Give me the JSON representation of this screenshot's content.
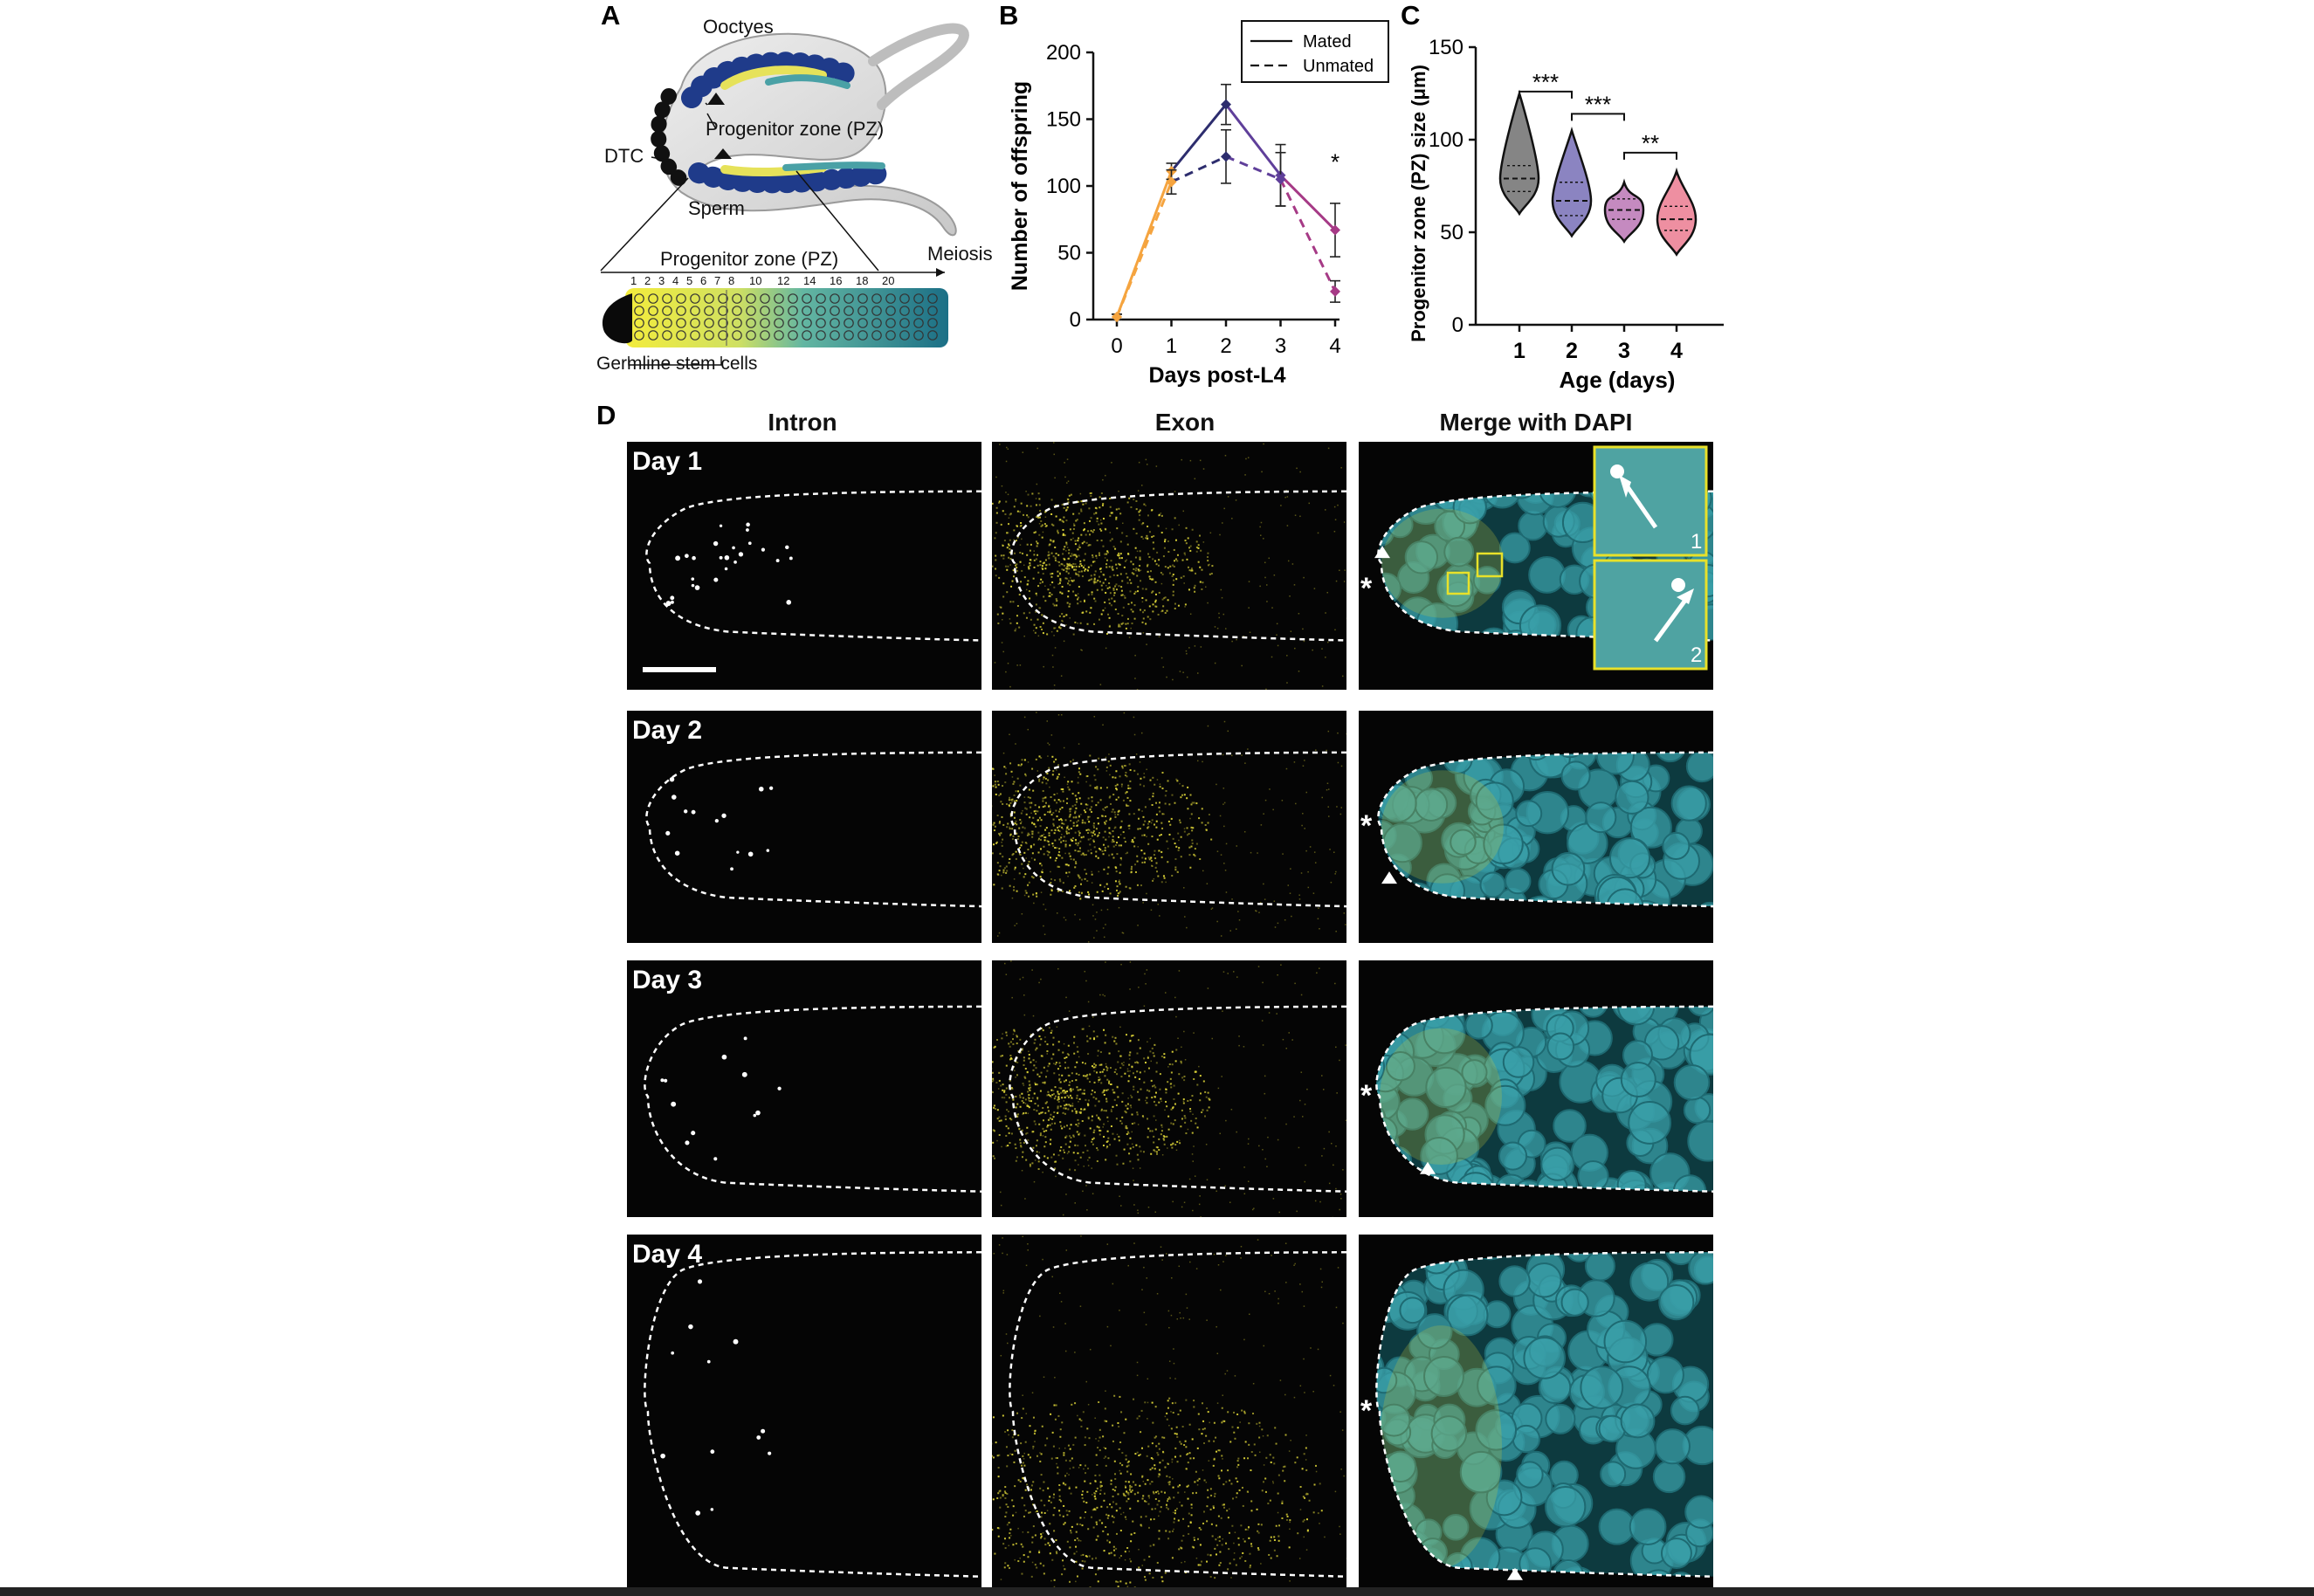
{
  "panels": {
    "a": {
      "letter": "A",
      "labels": {
        "oocytes": "Ooctyes",
        "progenitor_top": "Progenitor zone (PZ)",
        "dtc": "DTC",
        "sperm": "Sperm",
        "progenitor_bottom": "Progenitor zone (PZ)",
        "meiosis": "Meiosis",
        "germline_stem_cells": "Germline stem cells"
      },
      "cell_row_numbers": [
        "1",
        "2",
        "3",
        "4",
        "5",
        "6",
        "7",
        "8",
        "10",
        "12",
        "14",
        "16",
        "18",
        "20"
      ]
    },
    "b": {
      "letter": "B"
    },
    "c": {
      "letter": "C"
    },
    "d": {
      "letter": "D",
      "column_titles": [
        "Intron",
        "Exon",
        "Merge with DAPI"
      ],
      "rows": [
        {
          "label": "Day 1",
          "insets": [
            "1",
            "2"
          ]
        },
        {
          "label": "Day 2"
        },
        {
          "label": "Day 3"
        },
        {
          "label": "Day 4"
        }
      ]
    }
  },
  "chart_data": [
    {
      "type": "line",
      "panel": "B",
      "xlabel": "Days post-L4",
      "ylabel": "Number of offspring",
      "x": [
        0,
        1,
        2,
        3,
        4
      ],
      "xticks": [
        "0",
        "1",
        "2",
        "3",
        "4"
      ],
      "yticks": [
        "0",
        "50",
        "100",
        "150",
        "200"
      ],
      "ylim": [
        0,
        200
      ],
      "legend_position": "top-right",
      "series": [
        {
          "name": "Mated",
          "style": "solid",
          "values": [
            2,
            111,
            161,
            108,
            67
          ],
          "errors": [
            2,
            6,
            15,
            23,
            20
          ]
        },
        {
          "name": "Unmated",
          "style": "dashed",
          "values": [
            2,
            103,
            122,
            105,
            21
          ],
          "errors": [
            2,
            9,
            20,
            20,
            8
          ]
        }
      ],
      "annotations": [
        {
          "x": 4,
          "text": "*"
        }
      ],
      "segment_colors": [
        "#f5a43f",
        "#f5a43f",
        "#2d2d6e",
        "#5f3f9a",
        "#a63a86"
      ]
    },
    {
      "type": "violin",
      "panel": "C",
      "xlabel": "Age (days)",
      "ylabel": "Progenitor zone (PZ) size (μm)",
      "categories": [
        "1",
        "2",
        "3",
        "4"
      ],
      "yticks": [
        "0",
        "50",
        "100",
        "150"
      ],
      "ylim": [
        0,
        150
      ],
      "medians": [
        79,
        67,
        62,
        57
      ],
      "quartiles": [
        [
          72,
          86
        ],
        [
          59,
          77
        ],
        [
          57,
          68
        ],
        [
          51,
          64
        ]
      ],
      "ranges": [
        [
          60,
          125
        ],
        [
          48,
          105
        ],
        [
          45,
          77
        ],
        [
          38,
          83
        ]
      ],
      "colors": [
        "#858585",
        "#8b84c1",
        "#c58ac0",
        "#ee8fa1"
      ],
      "significance": [
        {
          "between": [
            "1",
            "2"
          ],
          "label": "***"
        },
        {
          "between": [
            "2",
            "3"
          ],
          "label": "***"
        },
        {
          "between": [
            "3",
            "4"
          ],
          "label": "**"
        }
      ]
    }
  ]
}
